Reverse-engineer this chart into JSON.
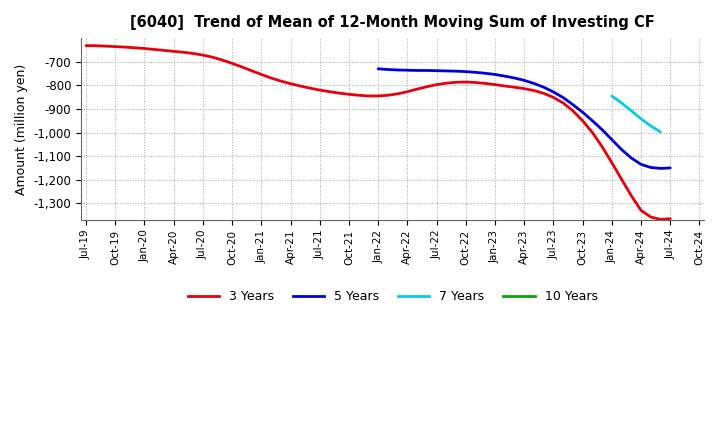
{
  "title": "[6040]  Trend of Mean of 12-Month Moving Sum of Investing CF",
  "ylabel": "Amount (million yen)",
  "background_color": "#ffffff",
  "plot_background": "#ffffff",
  "grid_color": "#999999",
  "series": {
    "3years": {
      "color": "#e8000a",
      "label": "3 Years",
      "x": [
        0,
        1,
        2,
        3,
        4,
        5,
        6,
        7,
        8,
        9,
        10,
        11,
        12,
        13,
        14,
        15,
        16,
        17,
        18,
        19,
        20,
        21,
        22,
        23,
        24,
        25,
        26,
        27,
        28,
        29,
        30,
        31,
        32,
        33,
        34,
        35,
        36,
        37,
        38,
        39,
        40,
        41,
        42,
        43,
        44,
        45,
        46,
        47,
        48,
        49,
        50,
        51,
        52,
        53,
        54,
        55,
        56,
        57,
        58,
        59,
        60
      ],
      "y": [
        -632,
        -632,
        -634,
        -636,
        -638,
        -641,
        -644,
        -648,
        -652,
        -656,
        -660,
        -665,
        -672,
        -681,
        -693,
        -707,
        -722,
        -738,
        -754,
        -769,
        -782,
        -793,
        -803,
        -812,
        -820,
        -827,
        -833,
        -838,
        -842,
        -845,
        -845,
        -842,
        -836,
        -827,
        -816,
        -806,
        -797,
        -791,
        -787,
        -786,
        -788,
        -792,
        -797,
        -803,
        -808,
        -814,
        -822,
        -834,
        -851,
        -875,
        -908,
        -950,
        -1000,
        -1060,
        -1128,
        -1198,
        -1268,
        -1330,
        -1358,
        -1368,
        -1365
      ],
      "linewidth": 2.0
    },
    "5years": {
      "color": "#0000dd",
      "label": "5 Years",
      "x": [
        30,
        31,
        32,
        33,
        34,
        35,
        36,
        37,
        38,
        39,
        40,
        41,
        42,
        43,
        44,
        45,
        46,
        47,
        48,
        49,
        50,
        51,
        52,
        53,
        54,
        55,
        56,
        57,
        58,
        59,
        60
      ],
      "y": [
        -730,
        -733,
        -735,
        -736,
        -737,
        -737,
        -738,
        -739,
        -740,
        -742,
        -745,
        -749,
        -754,
        -761,
        -769,
        -779,
        -792,
        -808,
        -828,
        -852,
        -882,
        -914,
        -950,
        -988,
        -1030,
        -1072,
        -1108,
        -1135,
        -1148,
        -1152,
        -1150
      ],
      "linewidth": 2.0
    },
    "7years": {
      "color": "#00ccee",
      "label": "7 Years",
      "x": [
        54,
        55,
        56,
        57,
        58,
        59
      ],
      "y": [
        -845,
        -875,
        -908,
        -942,
        -972,
        -998
      ],
      "linewidth": 2.0
    },
    "10years": {
      "color": "#00aa00",
      "label": "10 Years",
      "x": [],
      "y": [],
      "linewidth": 2.0
    }
  },
  "xtick_labels": [
    "Jul-19",
    "Oct-19",
    "Jan-20",
    "Apr-20",
    "Jul-20",
    "Oct-20",
    "Jan-21",
    "Apr-21",
    "Jul-21",
    "Oct-21",
    "Jan-22",
    "Apr-22",
    "Jul-22",
    "Oct-22",
    "Jan-23",
    "Apr-23",
    "Jul-23",
    "Oct-23",
    "Jan-24",
    "Apr-24",
    "Jul-24",
    "Oct-24"
  ],
  "xtick_positions": [
    0,
    3,
    6,
    9,
    12,
    15,
    18,
    21,
    24,
    27,
    30,
    33,
    36,
    39,
    42,
    45,
    48,
    51,
    54,
    57,
    60,
    63
  ],
  "ylim": [
    -1370,
    -600
  ],
  "yticks": [
    -700,
    -800,
    -900,
    -1000,
    -1100,
    -1200,
    -1300
  ],
  "legend_labels": [
    "3 Years",
    "5 Years",
    "7 Years",
    "10 Years"
  ],
  "legend_colors": [
    "#e8000a",
    "#0000dd",
    "#00ccee",
    "#00aa00"
  ]
}
